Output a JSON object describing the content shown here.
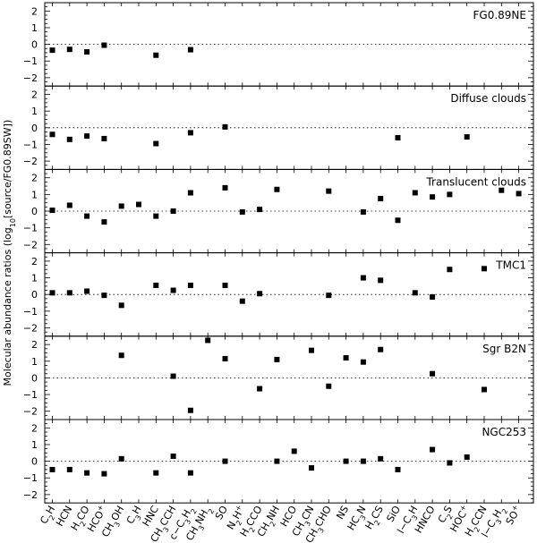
{
  "chart_data": {
    "type": "scatter",
    "ylabel": "Molecular abundance ratios (log10[source/FG0.89SW])",
    "ylim": [
      -2.5,
      2.5
    ],
    "yticks": [
      -2,
      -1,
      0,
      1,
      2
    ],
    "reference_line": 0,
    "categories": [
      "C2H",
      "HCN",
      "H2CO",
      "HCO+",
      "CH3OH",
      "C3H",
      "HNC",
      "CH3CCH",
      "c-C3H2",
      "CH3NH2",
      "SO",
      "N2H+",
      "H2CCO",
      "CH2NH",
      "HCO",
      "CH3CN",
      "CH3CHO",
      "NS",
      "HC3N",
      "H2CS",
      "SiO",
      "l-C3H",
      "HNCO",
      "C2S",
      "HOC+",
      "H2CCN",
      "l-C3H2",
      "SO+"
    ],
    "category_labels": [
      {
        "base": "C",
        "sub": "2",
        "rest": "H"
      },
      {
        "base": "HCN"
      },
      {
        "base": "H",
        "sub": "2",
        "rest": "CO"
      },
      {
        "base": "HCO",
        "sup": "+"
      },
      {
        "base": "CH",
        "sub": "3",
        "rest": "OH"
      },
      {
        "base": "C",
        "sub": "3",
        "rest": "H"
      },
      {
        "base": "HNC"
      },
      {
        "base": "CH",
        "sub": "3",
        "rest": "CCH"
      },
      {
        "base": "c−C",
        "sub": "3",
        "rest": "H",
        "sub2": "2"
      },
      {
        "base": "CH",
        "sub": "3",
        "rest": "NH",
        "sub2": "2"
      },
      {
        "base": "SO"
      },
      {
        "base": "N",
        "sub": "2",
        "rest": "H",
        "sup": "+"
      },
      {
        "base": "H",
        "sub": "2",
        "rest": "CCO"
      },
      {
        "base": "CH",
        "sub": "2",
        "rest": "NH"
      },
      {
        "base": "HCO"
      },
      {
        "base": "CH",
        "sub": "3",
        "rest": "CN"
      },
      {
        "base": "CH",
        "sub": "3",
        "rest": "CHO"
      },
      {
        "base": "NS"
      },
      {
        "base": "HC",
        "sub": "3",
        "rest": "N"
      },
      {
        "base": "H",
        "sub": "2",
        "rest": "CS"
      },
      {
        "base": "SiO"
      },
      {
        "base": "l−C",
        "sub": "3",
        "rest": "H"
      },
      {
        "base": "HNCO"
      },
      {
        "base": "C",
        "sub": "2",
        "rest": "S"
      },
      {
        "base": "HOC",
        "sup": "+"
      },
      {
        "base": "H",
        "sub": "2",
        "rest": "CCN"
      },
      {
        "base": "l−C",
        "sub": "3",
        "rest": "H",
        "sub2": "2"
      },
      {
        "base": "SO",
        "sup": "+"
      }
    ],
    "panels": [
      {
        "name": "FG0.89NE",
        "values": [
          -0.35,
          -0.3,
          -0.45,
          -0.05,
          null,
          null,
          -0.65,
          null,
          -0.32,
          null,
          null,
          null,
          null,
          null,
          null,
          null,
          null,
          null,
          null,
          null,
          null,
          null,
          null,
          null,
          null,
          null,
          null,
          null
        ]
      },
      {
        "name": "Diffuse clouds",
        "values": [
          -0.4,
          -0.7,
          -0.5,
          -0.65,
          null,
          null,
          -0.95,
          null,
          -0.3,
          null,
          0.05,
          null,
          null,
          null,
          null,
          null,
          null,
          null,
          null,
          null,
          -0.6,
          null,
          null,
          null,
          -0.55,
          null,
          null,
          null
        ]
      },
      {
        "name": "Translucent clouds",
        "values": [
          0.05,
          0.35,
          -0.3,
          -0.65,
          0.3,
          0.4,
          -0.3,
          0.0,
          1.1,
          null,
          1.4,
          -0.05,
          0.1,
          1.3,
          null,
          null,
          1.2,
          null,
          -0.05,
          0.75,
          -0.55,
          1.1,
          0.85,
          1.0,
          null,
          null,
          1.25,
          1.05
        ]
      },
      {
        "name": "TMC1",
        "values": [
          0.1,
          0.1,
          0.2,
          -0.05,
          -0.65,
          null,
          0.55,
          0.25,
          0.55,
          null,
          0.55,
          -0.4,
          0.05,
          null,
          null,
          null,
          -0.05,
          null,
          1.0,
          0.85,
          null,
          0.1,
          -0.15,
          1.5,
          null,
          1.55,
          null,
          null
        ]
      },
      {
        "name": "Sgr B2N",
        "values": [
          null,
          null,
          null,
          null,
          1.35,
          null,
          null,
          0.1,
          -1.95,
          2.25,
          1.15,
          null,
          -0.65,
          1.1,
          null,
          1.65,
          -0.5,
          1.2,
          0.95,
          1.7,
          null,
          null,
          0.25,
          null,
          null,
          -0.7,
          null,
          null
        ]
      },
      {
        "name": "NGC253",
        "values": [
          -0.5,
          -0.5,
          -0.7,
          -0.75,
          0.15,
          null,
          -0.7,
          0.3,
          -0.7,
          null,
          0.0,
          null,
          null,
          0.0,
          0.6,
          -0.4,
          null,
          0.0,
          0.0,
          0.15,
          -0.5,
          null,
          0.7,
          -0.1,
          0.25,
          null,
          null,
          null
        ]
      }
    ]
  }
}
